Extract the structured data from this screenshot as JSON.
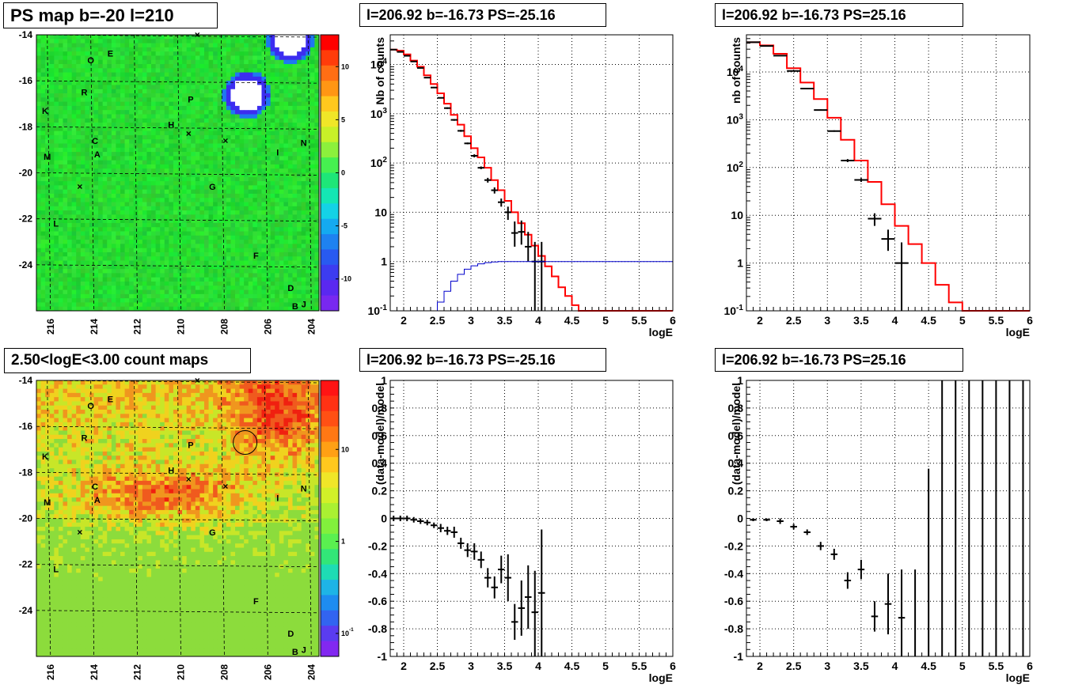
{
  "panels": {
    "map_ps": {
      "title": "PS map b=-20 l=210"
    },
    "spec_neg": {
      "title": "l=206.92 b=-16.73 PS=-25.16"
    },
    "spec_pos": {
      "title": "l=206.92 b=-16.73 PS=25.16"
    },
    "map_counts": {
      "title": "2.50<logE<3.00 count maps"
    },
    "res_neg": {
      "title": "l=206.92 b=-16.73 PS=-25.16"
    },
    "res_pos": {
      "title": "l=206.92 b=-16.73 PS=25.16"
    }
  },
  "chart_data": [
    {
      "id": "map_ps",
      "type": "heatmap",
      "title": "PS map b=-20 l=210",
      "xlim": [
        203.5,
        216.5
      ],
      "ylim": [
        -26.0,
        -14.0
      ],
      "x_ticks": [
        "216",
        "214",
        "212",
        "210",
        "208",
        "206",
        "204"
      ],
      "y_ticks": [
        "-14",
        "-16",
        "-18",
        "-20",
        "-22",
        "-24"
      ],
      "color_scale": [
        "-10",
        "-5",
        "0",
        "5",
        "10"
      ],
      "color_range": [
        -13,
        13
      ],
      "background_level": 0,
      "hot_spots": [
        {
          "l": 206.8,
          "b": -16.6,
          "kind": "strong-negative"
        },
        {
          "l": 204.8,
          "b": -14.2,
          "kind": "strong-negative"
        }
      ],
      "source_labels": [
        {
          "text": "O",
          "l": 214.0,
          "b": -15.1
        },
        {
          "text": "E",
          "l": 213.1,
          "b": -14.8
        },
        {
          "text": "R",
          "l": 214.3,
          "b": -16.5
        },
        {
          "text": "P",
          "l": 209.4,
          "b": -16.8
        },
        {
          "text": "K",
          "l": 216.1,
          "b": -17.3
        },
        {
          "text": "H",
          "l": 210.3,
          "b": -17.9
        },
        {
          "text": "C",
          "l": 213.8,
          "b": -18.6
        },
        {
          "text": "A",
          "l": 213.7,
          "b": -19.2
        },
        {
          "text": "M",
          "l": 216.0,
          "b": -19.3
        },
        {
          "text": "I",
          "l": 205.4,
          "b": -19.1
        },
        {
          "text": "N",
          "l": 204.2,
          "b": -18.7
        },
        {
          "text": "G",
          "l": 208.4,
          "b": -20.6
        },
        {
          "text": "L",
          "l": 215.6,
          "b": -22.2
        },
        {
          "text": "F",
          "l": 206.4,
          "b": -23.6
        },
        {
          "text": "D",
          "l": 204.8,
          "b": -25.0
        },
        {
          "text": "B",
          "l": 204.6,
          "b": -25.8
        },
        {
          "text": "J",
          "l": 204.2,
          "b": -25.7
        }
      ],
      "crosses": [
        {
          "l": 209.1,
          "b": -14.0
        },
        {
          "l": 209.5,
          "b": -18.3
        },
        {
          "l": 207.8,
          "b": -18.6
        },
        {
          "l": 214.5,
          "b": -20.6
        }
      ]
    },
    {
      "id": "spec_neg",
      "type": "line",
      "title": "l=206.92 b=-16.73 PS=-25.16",
      "xlabel": "logE",
      "ylabel": "Nb of counts",
      "xlim": [
        1.8,
        6.0
      ],
      "ylim": [
        0.1,
        40000
      ],
      "yscale": "log",
      "grid": true,
      "x_ticks": [
        "2",
        "2.5",
        "3",
        "3.5",
        "4",
        "4.5",
        "5",
        "5.5",
        "6"
      ],
      "y_ticks": [
        "10^-1",
        "1",
        "10",
        "10^2",
        "10^3",
        "10^4"
      ],
      "bin_width": 0.1,
      "series": [
        {
          "name": "",
          "kind": "model-histogram",
          "color": "#ff0000",
          "bin_edges": [
            1.8,
            1.9,
            2.0,
            2.1,
            2.2,
            2.3,
            2.4,
            2.5,
            2.6,
            2.7,
            2.8,
            2.9,
            3.0,
            3.1,
            3.2,
            3.3,
            3.4,
            3.5,
            3.6,
            3.7,
            3.8,
            3.9,
            4.0,
            4.1,
            4.2,
            4.3,
            4.4,
            4.5,
            4.6,
            4.7,
            4.8,
            4.9,
            5.0,
            6.0
          ],
          "values": [
            20000,
            19000,
            16000,
            12000,
            9000,
            6000,
            4000,
            2600,
            1600,
            950,
            600,
            350,
            200,
            130,
            80,
            45,
            28,
            17,
            10,
            6,
            3.5,
            2.1,
            1.3,
            0.8,
            0.5,
            0.3,
            0.2,
            0.13,
            0.1,
            0.1,
            0.1,
            0.1,
            0.1
          ]
        },
        {
          "name": "",
          "kind": "data-points",
          "color": "#000000",
          "x": [
            1.85,
            1.95,
            2.05,
            2.15,
            2.25,
            2.35,
            2.45,
            2.55,
            2.65,
            2.75,
            2.85,
            2.95,
            3.05,
            3.15,
            3.25,
            3.35,
            3.45,
            3.55,
            3.65,
            3.75,
            3.85,
            3.95,
            4.05
          ],
          "y": [
            20000,
            18000,
            15000,
            11500,
            8500,
            5400,
            3400,
            2100,
            1300,
            750,
            450,
            250,
            140,
            80,
            45,
            28,
            16,
            10,
            3.8,
            4.0,
            2.0,
            1.0,
            1.0
          ],
          "y_low": [
            19800,
            17800,
            14800,
            11300,
            8300,
            5300,
            3300,
            2050,
            1250,
            720,
            430,
            240,
            130,
            75,
            40,
            24,
            13,
            7,
            2.0,
            2.2,
            1.0,
            0.1,
            0.1
          ],
          "y_high": [
            20200,
            18200,
            15200,
            11700,
            8700,
            5500,
            3500,
            2150,
            1350,
            780,
            470,
            260,
            150,
            85,
            50,
            32,
            19,
            13,
            6.5,
            6.8,
            4.0,
            2.5,
            2.5
          ]
        },
        {
          "name": "",
          "kind": "step-line",
          "color": "#0000cc",
          "bin_edges": [
            2.4,
            2.5,
            2.6,
            2.7,
            2.8,
            2.9,
            3.0,
            3.1,
            3.2,
            3.3,
            3.4,
            3.5,
            3.6,
            3.7,
            3.8,
            3.9,
            4.0,
            4.1,
            6.0
          ],
          "values": [
            0.1,
            0.15,
            0.25,
            0.4,
            0.55,
            0.7,
            0.82,
            0.9,
            0.95,
            0.98,
            1.0,
            1.0,
            1.0,
            1.0,
            1.0,
            1.0,
            1.0,
            1.0
          ]
        }
      ]
    },
    {
      "id": "spec_pos",
      "type": "line",
      "title": "l=206.92 b=-16.73 PS=25.16",
      "xlabel": "logE",
      "ylabel": "nb of counts",
      "xlim": [
        1.8,
        6.0
      ],
      "ylim": [
        0.1,
        60000
      ],
      "yscale": "log",
      "grid": true,
      "x_ticks": [
        "2",
        "2.5",
        "3",
        "3.5",
        "4",
        "4.5",
        "5",
        "5.5",
        "6"
      ],
      "y_ticks": [
        "10^-1",
        "1",
        "10",
        "10^2",
        "10^3",
        "10^4"
      ],
      "bin_width": 0.2,
      "series": [
        {
          "name": "",
          "kind": "model-histogram",
          "color": "#ff0000",
          "bin_edges": [
            1.8,
            2.0,
            2.2,
            2.4,
            2.6,
            2.8,
            3.0,
            3.2,
            3.4,
            3.6,
            3.8,
            4.0,
            4.2,
            4.4,
            4.6,
            4.8,
            5.0,
            6.0
          ],
          "values": [
            42000,
            36000,
            24000,
            12000,
            6000,
            2700,
            1100,
            380,
            140,
            50,
            17,
            6,
            2.5,
            1.0,
            0.35,
            0.15,
            0.1
          ]
        },
        {
          "name": "",
          "kind": "data-points",
          "color": "#000000",
          "x": [
            1.9,
            2.1,
            2.3,
            2.5,
            2.7,
            2.9,
            3.1,
            3.3,
            3.5,
            3.7,
            3.9,
            4.1
          ],
          "y": [
            42000,
            35000,
            22000,
            10500,
            4500,
            1600,
            580,
            140,
            55,
            8.5,
            3.2,
            1.0
          ],
          "y_low": [
            41500,
            34500,
            21700,
            10300,
            4400,
            1550,
            560,
            130,
            50,
            6,
            1.8,
            0.1
          ],
          "y_high": [
            42500,
            35500,
            22300,
            10700,
            4600,
            1650,
            600,
            150,
            60,
            11,
            5,
            2.7
          ]
        }
      ]
    },
    {
      "id": "map_counts",
      "type": "heatmap",
      "title": "2.50<logE<3.00 count maps",
      "xlim": [
        203.5,
        216.5
      ],
      "ylim": [
        -26.0,
        -14.0
      ],
      "x_ticks": [
        "216",
        "214",
        "212",
        "210",
        "208",
        "206",
        "204"
      ],
      "y_ticks": [
        "-14",
        "-16",
        "-18",
        "-20",
        "-22",
        "-24"
      ],
      "color_scale": [
        "10^-1",
        "1",
        "10"
      ],
      "color_scale_type": "log",
      "circle": {
        "l": 206.9,
        "b": -16.7
      }
    },
    {
      "id": "res_neg",
      "type": "scatter",
      "title": "l=206.92 b=-16.73 PS=-25.16",
      "xlabel": "logE",
      "ylabel": "(data-model)/model",
      "xlim": [
        1.8,
        6.0
      ],
      "ylim": [
        -1.0,
        1.0
      ],
      "grid": true,
      "x_ticks": [
        "2",
        "2.5",
        "3",
        "3.5",
        "4",
        "4.5",
        "5",
        "5.5",
        "6"
      ],
      "y_ticks": [
        "-1",
        "-0.8",
        "-0.6",
        "-0.4",
        "-0.2",
        "0",
        "0.2",
        "0.4",
        "0.6",
        "0.8",
        "1"
      ],
      "series": [
        {
          "name": "",
          "kind": "data-points",
          "color": "#000000",
          "x": [
            1.85,
            1.95,
            2.05,
            2.15,
            2.25,
            2.35,
            2.45,
            2.55,
            2.65,
            2.75,
            2.85,
            2.95,
            3.05,
            3.15,
            3.25,
            3.35,
            3.45,
            3.55,
            3.65,
            3.75,
            3.85,
            3.95,
            4.05
          ],
          "y": [
            0,
            0,
            0,
            -0.01,
            -0.02,
            -0.03,
            -0.05,
            -0.07,
            -0.09,
            -0.1,
            -0.18,
            -0.23,
            -0.24,
            -0.3,
            -0.43,
            -0.5,
            -0.37,
            -0.43,
            -0.75,
            -0.65,
            -0.57,
            -0.68,
            -0.54
          ],
          "y_low": [
            -0.02,
            -0.02,
            -0.02,
            -0.03,
            -0.04,
            -0.05,
            -0.07,
            -0.1,
            -0.12,
            -0.14,
            -0.22,
            -0.28,
            -0.3,
            -0.36,
            -0.5,
            -0.58,
            -0.47,
            -0.6,
            -0.88,
            -0.85,
            -0.8,
            -1.0,
            -1.0
          ],
          "y_high": [
            0.02,
            0.02,
            0.02,
            0.01,
            0,
            -0.01,
            -0.03,
            -0.04,
            -0.06,
            -0.06,
            -0.14,
            -0.18,
            -0.18,
            -0.24,
            -0.36,
            -0.42,
            -0.27,
            -0.26,
            -0.62,
            -0.45,
            -0.34,
            -0.38,
            -0.08
          ]
        }
      ]
    },
    {
      "id": "res_pos",
      "type": "scatter",
      "title": "l=206.92 b=-16.73 PS=25.16",
      "xlabel": "logE",
      "ylabel": "(data-model)/model",
      "xlim": [
        1.8,
        6.0
      ],
      "ylim": [
        -1.0,
        1.0
      ],
      "grid": true,
      "x_ticks": [
        "2",
        "2.5",
        "3",
        "3.5",
        "4",
        "4.5",
        "5",
        "5.5",
        "6"
      ],
      "y_ticks": [
        "-1",
        "-0.8",
        "-0.6",
        "-0.4",
        "-0.2",
        "0",
        "0.2",
        "0.4",
        "0.6",
        "0.8",
        "1"
      ],
      "series": [
        {
          "name": "",
          "kind": "data-points",
          "color": "#000000",
          "x": [
            1.9,
            2.1,
            2.3,
            2.5,
            2.7,
            2.9,
            3.1,
            3.3,
            3.5,
            3.7,
            3.9,
            4.1,
            4.3,
            4.5,
            4.7,
            4.9,
            5.1,
            5.3,
            5.5,
            5.7,
            5.9
          ],
          "y": [
            -0.01,
            -0.01,
            -0.02,
            -0.06,
            -0.1,
            -0.2,
            -0.26,
            -0.45,
            -0.37,
            -0.71,
            -0.62,
            -0.72,
            null,
            null,
            null,
            null,
            null,
            null,
            null,
            null,
            null
          ],
          "y_low": [
            -0.02,
            -0.02,
            -0.04,
            -0.08,
            -0.12,
            -0.23,
            -0.3,
            -0.51,
            -0.44,
            -0.82,
            -0.84,
            -1.0,
            -1.0,
            -1.0,
            -1.0,
            -1.0,
            -1.0,
            -1.0,
            -1.0,
            -1.0,
            -1.0
          ],
          "y_high": [
            0,
            0,
            0,
            -0.04,
            -0.08,
            -0.17,
            -0.22,
            -0.39,
            -0.3,
            -0.6,
            -0.4,
            -0.37,
            -0.37,
            0.36,
            1.0,
            1.0,
            1.0,
            1.0,
            1.0,
            1.0,
            1.0
          ]
        }
      ]
    }
  ]
}
